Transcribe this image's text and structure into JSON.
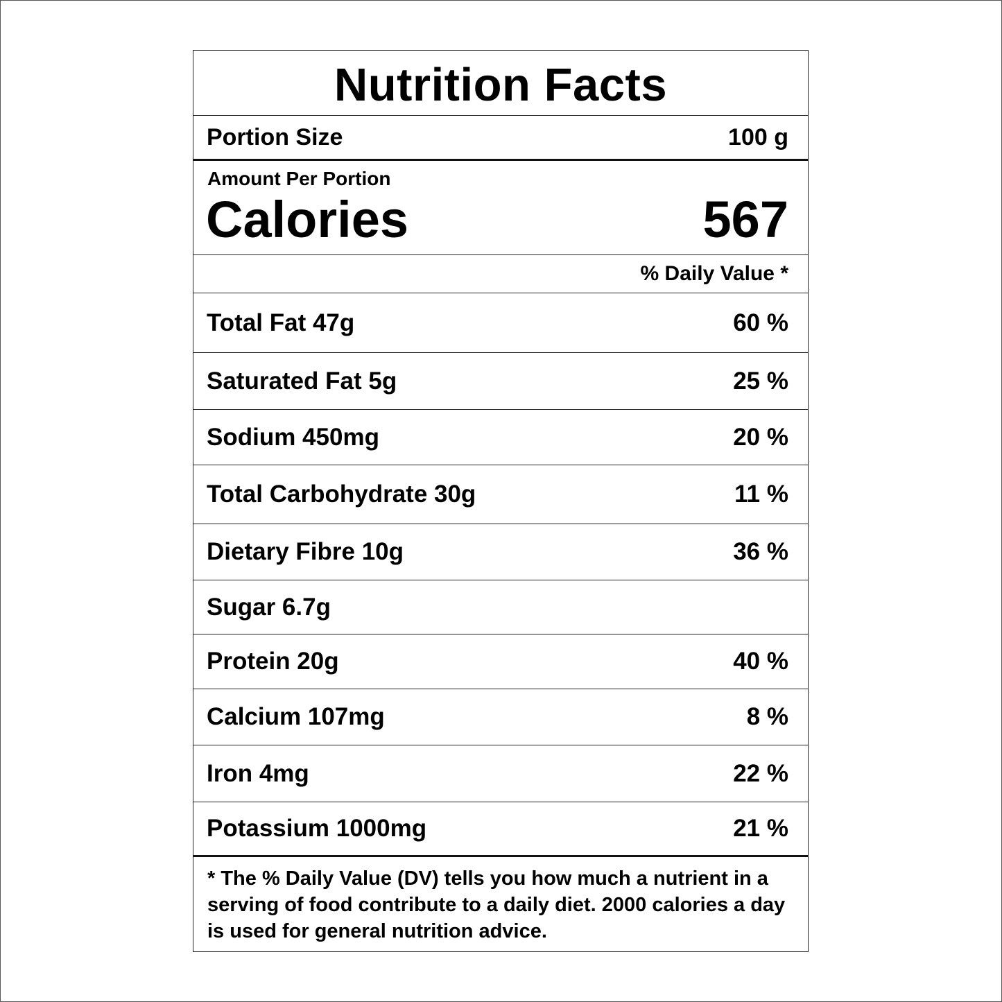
{
  "title": "Nutrition Facts",
  "portion": {
    "label": "Portion Size",
    "value": "100 g"
  },
  "calories": {
    "amount_label": "Amount Per Portion",
    "label": "Calories",
    "value": "567"
  },
  "daily_value_header": "% Daily Value *",
  "nutrients": [
    {
      "label": "Total Fat 47g",
      "dv": "60 %"
    },
    {
      "label": "Saturated Fat 5g",
      "dv": "25 %"
    },
    {
      "label": "Sodium 450mg",
      "dv": "20 %"
    },
    {
      "label": "Total Carbohydrate 30g",
      "dv": "11 %"
    },
    {
      "label": "Dietary Fibre 10g",
      "dv": "36 %"
    },
    {
      "label": "Sugar 6.7g",
      "dv": ""
    },
    {
      "label": "Protein 20g",
      "dv": "40 %"
    },
    {
      "label": "Calcium 107mg",
      "dv": "8 %"
    },
    {
      "label": "Iron 4mg",
      "dv": "22 %"
    },
    {
      "label": "Potassium 1000mg",
      "dv": "21 %"
    }
  ],
  "footnote": "* The % Daily Value (DV) tells you how much a nutrient in a serving of food contribute to a daily diet. 2000 calories a day is used for general nutrition advice."
}
